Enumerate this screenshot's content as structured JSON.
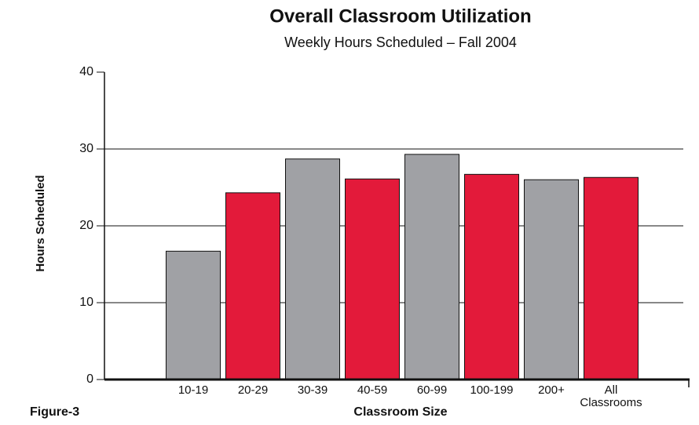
{
  "chart_data": {
    "type": "bar",
    "title": "Overall Classroom Utilization",
    "subtitle": "Weekly Hours Scheduled – Fall 2004",
    "x_label": "Classroom Size",
    "y_label": "Hours Scheduled",
    "annotation": "Figure-3",
    "categories": [
      "10-19",
      "20-29",
      "30-39",
      "40-59",
      "60-99",
      "100-199",
      "200+",
      "All Classrooms"
    ],
    "values": [
      16.7,
      24.3,
      28.7,
      26.1,
      29.3,
      26.7,
      26.0,
      26.3
    ],
    "colors": [
      "#a0a1a5",
      "#e31a3a",
      "#a0a1a5",
      "#e31a3a",
      "#a0a1a5",
      "#e31a3a",
      "#a0a1a5",
      "#e31a3a"
    ],
    "ylim": [
      0,
      40
    ],
    "yticks": [
      0,
      10,
      20,
      30,
      40
    ],
    "grid": true
  }
}
